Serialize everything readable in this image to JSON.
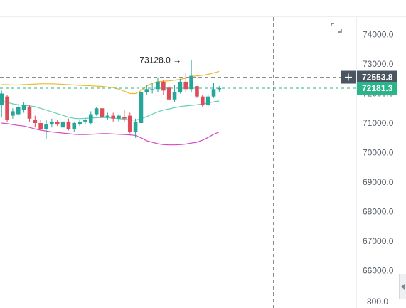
{
  "colors": {
    "up": "#26a69a",
    "down": "#e04b5a",
    "upper_band": "#f0b82a",
    "middle_band": "#5fd3b3",
    "lower_band": "#d24bc5",
    "crosshair_label_bg": "#4a5561",
    "last_price_bg": "#2bb38a"
  },
  "icons": {
    "zoom": "expand-corners-icon",
    "crosshair_add": "plus-icon",
    "scroll_left": "triangle-left-icon"
  },
  "chart_data": {
    "type": "candlestick",
    "ylim": [
      64700,
      74500
    ],
    "y_ticks": [
      "74000.0",
      "73000.0",
      "72000.0",
      "71000.0",
      "70000.0",
      "69000.0",
      "68000.0",
      "67000.0",
      "66000.0"
    ],
    "y_tick_values": [
      74000,
      73000,
      72000,
      71000,
      70000,
      69000,
      68000,
      67000,
      66000
    ],
    "bottom_tick_label": "800.0",
    "crosshair_price": 72553.8,
    "crosshair_label": "72553.8",
    "last_price": 72181.3,
    "last_price_label": "72181.3",
    "high_marker": {
      "label": "73128.0",
      "value": 73128.0
    },
    "candles": [
      {
        "o": 71600,
        "h": 72100,
        "l": 71200,
        "c": 72000
      },
      {
        "o": 71900,
        "h": 71950,
        "l": 71050,
        "c": 71100
      },
      {
        "o": 71250,
        "h": 71500,
        "l": 71150,
        "c": 71400
      },
      {
        "o": 71300,
        "h": 71650,
        "l": 71250,
        "c": 71550
      },
      {
        "o": 71450,
        "h": 71700,
        "l": 71350,
        "c": 71600
      },
      {
        "o": 71550,
        "h": 71600,
        "l": 71050,
        "c": 71150
      },
      {
        "o": 71100,
        "h": 71250,
        "l": 70850,
        "c": 71000
      },
      {
        "o": 71000,
        "h": 71100,
        "l": 70750,
        "c": 70800
      },
      {
        "o": 70800,
        "h": 71100,
        "l": 70450,
        "c": 70950
      },
      {
        "o": 70950,
        "h": 71150,
        "l": 70850,
        "c": 71050
      },
      {
        "o": 71050,
        "h": 71100,
        "l": 70900,
        "c": 70950
      },
      {
        "o": 70850,
        "h": 71100,
        "l": 70750,
        "c": 71050
      },
      {
        "o": 71050,
        "h": 71150,
        "l": 70750,
        "c": 70800
      },
      {
        "o": 70800,
        "h": 71050,
        "l": 70700,
        "c": 71000
      },
      {
        "o": 70950,
        "h": 71100,
        "l": 70900,
        "c": 71050
      },
      {
        "o": 71050,
        "h": 71150,
        "l": 70950,
        "c": 71100
      },
      {
        "o": 71000,
        "h": 71400,
        "l": 70950,
        "c": 71300
      },
      {
        "o": 71300,
        "h": 71550,
        "l": 71250,
        "c": 71500
      },
      {
        "o": 71500,
        "h": 71600,
        "l": 71150,
        "c": 71200
      },
      {
        "o": 71200,
        "h": 71350,
        "l": 71100,
        "c": 71250
      },
      {
        "o": 71250,
        "h": 71350,
        "l": 71050,
        "c": 71150
      },
      {
        "o": 71150,
        "h": 71300,
        "l": 71050,
        "c": 71250
      },
      {
        "o": 71200,
        "h": 71450,
        "l": 71050,
        "c": 71150
      },
      {
        "o": 71250,
        "h": 71350,
        "l": 70650,
        "c": 70700
      },
      {
        "o": 70700,
        "h": 71150,
        "l": 70500,
        "c": 71050
      },
      {
        "o": 71000,
        "h": 72300,
        "l": 70950,
        "c": 72050
      },
      {
        "o": 72050,
        "h": 72300,
        "l": 71950,
        "c": 72150
      },
      {
        "o": 72150,
        "h": 72350,
        "l": 72000,
        "c": 72150
      },
      {
        "o": 72150,
        "h": 72550,
        "l": 72050,
        "c": 72400
      },
      {
        "o": 72400,
        "h": 72450,
        "l": 71950,
        "c": 72100
      },
      {
        "o": 72200,
        "h": 72250,
        "l": 71750,
        "c": 71800
      },
      {
        "o": 71800,
        "h": 72300,
        "l": 71700,
        "c": 72050
      },
      {
        "o": 72050,
        "h": 72500,
        "l": 72000,
        "c": 72400
      },
      {
        "o": 72400,
        "h": 72700,
        "l": 72050,
        "c": 72150
      },
      {
        "o": 72150,
        "h": 73128,
        "l": 72050,
        "c": 72600
      },
      {
        "o": 72250,
        "h": 72250,
        "l": 71850,
        "c": 71900
      },
      {
        "o": 71900,
        "h": 71950,
        "l": 71550,
        "c": 71600
      },
      {
        "o": 71600,
        "h": 72000,
        "l": 71550,
        "c": 71900
      },
      {
        "o": 71900,
        "h": 72350,
        "l": 71850,
        "c": 72150
      },
      {
        "o": 72150,
        "h": 72250,
        "l": 72050,
        "c": 72181.3
      }
    ],
    "upper_band": [
      72300,
      72300,
      72290,
      72290,
      72300,
      72310,
      72320,
      72330,
      72330,
      72330,
      72320,
      72310,
      72300,
      72290,
      72280,
      72270,
      72260,
      72250,
      72240,
      72220,
      72200,
      72150,
      72080,
      72000,
      72000,
      72100,
      72250,
      72350,
      72400,
      72420,
      72430,
      72450,
      72480,
      72520,
      72580,
      72600,
      72620,
      72650,
      72700,
      72750
    ],
    "middle_band": [
      71750,
      71700,
      71650,
      71620,
      71600,
      71580,
      71560,
      71500,
      71440,
      71380,
      71320,
      71260,
      71200,
      71160,
      71150,
      71160,
      71170,
      71180,
      71190,
      71180,
      71170,
      71150,
      71130,
      71110,
      71100,
      71150,
      71220,
      71300,
      71380,
      71440,
      71480,
      71520,
      71560,
      71580,
      71600,
      71620,
      71650,
      71680,
      71720,
      71750
    ],
    "lower_band": [
      71000,
      70980,
      70950,
      70920,
      70900,
      70850,
      70800,
      70760,
      70730,
      70700,
      70680,
      70660,
      70640,
      70620,
      70610,
      70610,
      70620,
      70630,
      70640,
      70640,
      70630,
      70620,
      70610,
      70600,
      70580,
      70500,
      70400,
      70350,
      70300,
      70270,
      70260,
      70260,
      70270,
      70290,
      70320,
      70350,
      70420,
      70510,
      70620,
      70700
    ]
  }
}
